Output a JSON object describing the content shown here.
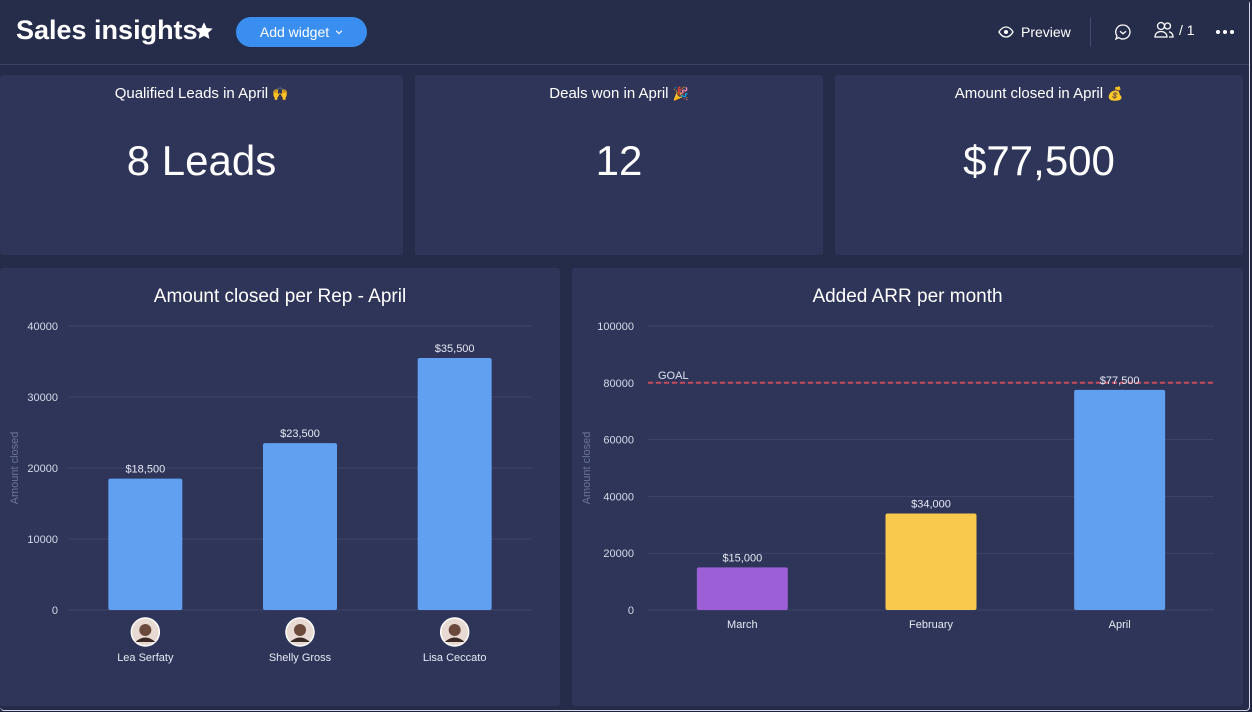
{
  "header": {
    "title": "Sales insights",
    "add_widget_label": "Add widget",
    "preview_label": "Preview",
    "members_label": "/ 1"
  },
  "colors": {
    "background": "#252c4a",
    "card": "#2e3558",
    "accent": "#3a8ef0",
    "bar_blue": "#61a0f0",
    "bar_purple": "#9c5fd6",
    "bar_yellow": "#f8c94c",
    "goal_line": "#c94a5a"
  },
  "kpis": [
    {
      "title": "Qualified Leads in April",
      "emoji": "🙌",
      "value": "8 Leads"
    },
    {
      "title": "Deals won in April",
      "emoji": "🎉",
      "value": "12"
    },
    {
      "title": "Amount closed in April",
      "emoji": "💰",
      "value": "$77,500"
    }
  ],
  "chart_data": [
    {
      "type": "bar",
      "title": "Amount closed per Rep - April",
      "ylabel": "Amount closed",
      "xlabel": "",
      "ylim": [
        0,
        40000
      ],
      "yticks": [
        0,
        10000,
        20000,
        30000,
        40000
      ],
      "categories": [
        "Lea Serfaty",
        "Shelly Gross",
        "Lisa Ceccato"
      ],
      "values": [
        18500,
        23500,
        35500
      ],
      "value_labels": [
        "$18,500",
        "$23,500",
        "$35,500"
      ],
      "colors": [
        "#61a0f0",
        "#61a0f0",
        "#61a0f0"
      ],
      "grid": true
    },
    {
      "type": "bar",
      "title": "Added ARR per month",
      "ylabel": "Amount closed",
      "xlabel": "",
      "ylim": [
        0,
        100000
      ],
      "yticks": [
        0,
        20000,
        40000,
        60000,
        80000,
        100000
      ],
      "categories": [
        "March",
        "February",
        "April"
      ],
      "values": [
        15000,
        34000,
        77500
      ],
      "value_labels": [
        "$15,000",
        "$34,000",
        "$77,500"
      ],
      "colors": [
        "#9c5fd6",
        "#f8c94c",
        "#61a0f0"
      ],
      "goal": {
        "label": "GOAL",
        "value": 80000
      },
      "grid": true
    }
  ]
}
